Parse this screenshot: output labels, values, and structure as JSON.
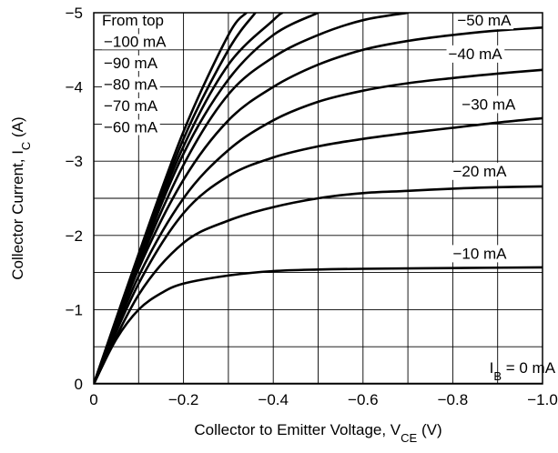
{
  "chart_data": {
    "type": "line",
    "xlabel": "Collector to Emitter Voltage, V",
    "xlabel_sub": "CE",
    "xlabel_unit": " (V)",
    "ylabel": "Collector Current, I",
    "ylabel_sub": "C",
    "ylabel_unit": " (A)",
    "xlim": [
      0,
      -1.0
    ],
    "ylim": [
      0,
      -5
    ],
    "grid": true,
    "x_ticks": [
      0,
      -0.2,
      -0.4,
      -0.6,
      -0.8,
      -1.0
    ],
    "x_tick_labels": [
      "0",
      "−0.2",
      "−0.4",
      "−0.6",
      "−0.8",
      "−1.0"
    ],
    "y_ticks": [
      0,
      -1,
      -2,
      -3,
      -4,
      -5
    ],
    "y_tick_labels": [
      "0",
      "−1",
      "−2",
      "−3",
      "−4",
      "−5"
    ],
    "legend": {
      "title": "From top",
      "items": [
        "−100 mA",
        "−90 mA",
        "−80 mA",
        "−70 mA",
        "−60 mA"
      ],
      "placement": "top-left"
    },
    "series": [
      {
        "name": "−100 mA",
        "x": [
          0,
          -0.1,
          -0.2,
          -0.3,
          -0.34
        ],
        "y": [
          0,
          -1.75,
          -3.4,
          -4.7,
          -5.0
        ]
      },
      {
        "name": "−90 mA",
        "x": [
          0,
          -0.1,
          -0.2,
          -0.3,
          -0.36
        ],
        "y": [
          0,
          -1.7,
          -3.3,
          -4.5,
          -5.0
        ]
      },
      {
        "name": "−80 mA",
        "x": [
          0,
          -0.1,
          -0.2,
          -0.3,
          -0.4,
          -0.42
        ],
        "y": [
          0,
          -1.68,
          -3.2,
          -4.3,
          -4.9,
          -5.0
        ]
      },
      {
        "name": "−70 mA",
        "x": [
          0,
          -0.1,
          -0.2,
          -0.3,
          -0.4,
          -0.5
        ],
        "y": [
          0,
          -1.64,
          -3.1,
          -4.1,
          -4.7,
          -5.0
        ]
      },
      {
        "name": "−60 mA",
        "x": [
          0,
          -0.1,
          -0.2,
          -0.3,
          -0.4,
          -0.5,
          -0.6,
          -0.7
        ],
        "y": [
          0,
          -1.6,
          -2.95,
          -3.9,
          -4.4,
          -4.7,
          -4.9,
          -5.0
        ]
      },
      {
        "name": "−50 mA",
        "x": [
          0,
          -0.1,
          -0.2,
          -0.3,
          -0.4,
          -0.5,
          -0.6,
          -0.7,
          -0.8,
          -0.9,
          -1.0
        ],
        "y": [
          0,
          -1.55,
          -2.75,
          -3.55,
          -4.0,
          -4.3,
          -4.5,
          -4.62,
          -4.7,
          -4.76,
          -4.8
        ]
      },
      {
        "name": "−40 mA",
        "x": [
          0,
          -0.1,
          -0.2,
          -0.3,
          -0.4,
          -0.5,
          -0.6,
          -0.7,
          -0.8,
          -0.9,
          -1.0
        ],
        "y": [
          0,
          -1.45,
          -2.5,
          -3.15,
          -3.55,
          -3.8,
          -3.95,
          -4.05,
          -4.12,
          -4.18,
          -4.23
        ]
      },
      {
        "name": "−30 mA",
        "x": [
          0,
          -0.1,
          -0.2,
          -0.3,
          -0.4,
          -0.5,
          -0.6,
          -0.7,
          -0.8,
          -0.9,
          -1.0
        ],
        "y": [
          0,
          -1.35,
          -2.3,
          -2.8,
          -3.05,
          -3.2,
          -3.3,
          -3.38,
          -3.45,
          -3.52,
          -3.58
        ]
      },
      {
        "name": "−20 mA",
        "x": [
          0,
          -0.1,
          -0.2,
          -0.3,
          -0.4,
          -0.5,
          -0.6,
          -0.7,
          -0.8,
          -0.9,
          -1.0
        ],
        "y": [
          0,
          -1.2,
          -1.9,
          -2.2,
          -2.38,
          -2.5,
          -2.57,
          -2.6,
          -2.63,
          -2.65,
          -2.66
        ]
      },
      {
        "name": "−10 mA",
        "x": [
          0,
          -0.05,
          -0.1,
          -0.15,
          -0.2,
          -0.3,
          -0.4,
          -0.5,
          -0.6,
          -0.8,
          -1.0
        ],
        "y": [
          0,
          -0.6,
          -1.0,
          -1.22,
          -1.35,
          -1.46,
          -1.52,
          -1.54,
          -1.55,
          -1.56,
          -1.57
        ]
      },
      {
        "name": "I_B = 0 mA",
        "x": [
          0,
          -1.0
        ],
        "y": [
          0,
          0
        ]
      }
    ],
    "curve_labels": [
      {
        "text": "−50 mA",
        "series": "−50 mA",
        "x": -0.87,
        "y": -4.9
      },
      {
        "text": "−40 mA",
        "series": "−40 mA",
        "x": -0.85,
        "y": -4.45
      },
      {
        "text": "−30 mA",
        "series": "−30 mA",
        "x": -0.88,
        "y": -3.77
      },
      {
        "text": "−20 mA",
        "series": "−20 mA",
        "x": -0.86,
        "y": -2.87
      },
      {
        "text": "−10 mA",
        "series": "−10 mA",
        "x": -0.86,
        "y": -1.76
      }
    ],
    "ib_zero_label": {
      "main": "I",
      "sub": "B",
      "rest": " = 0 mA"
    }
  }
}
